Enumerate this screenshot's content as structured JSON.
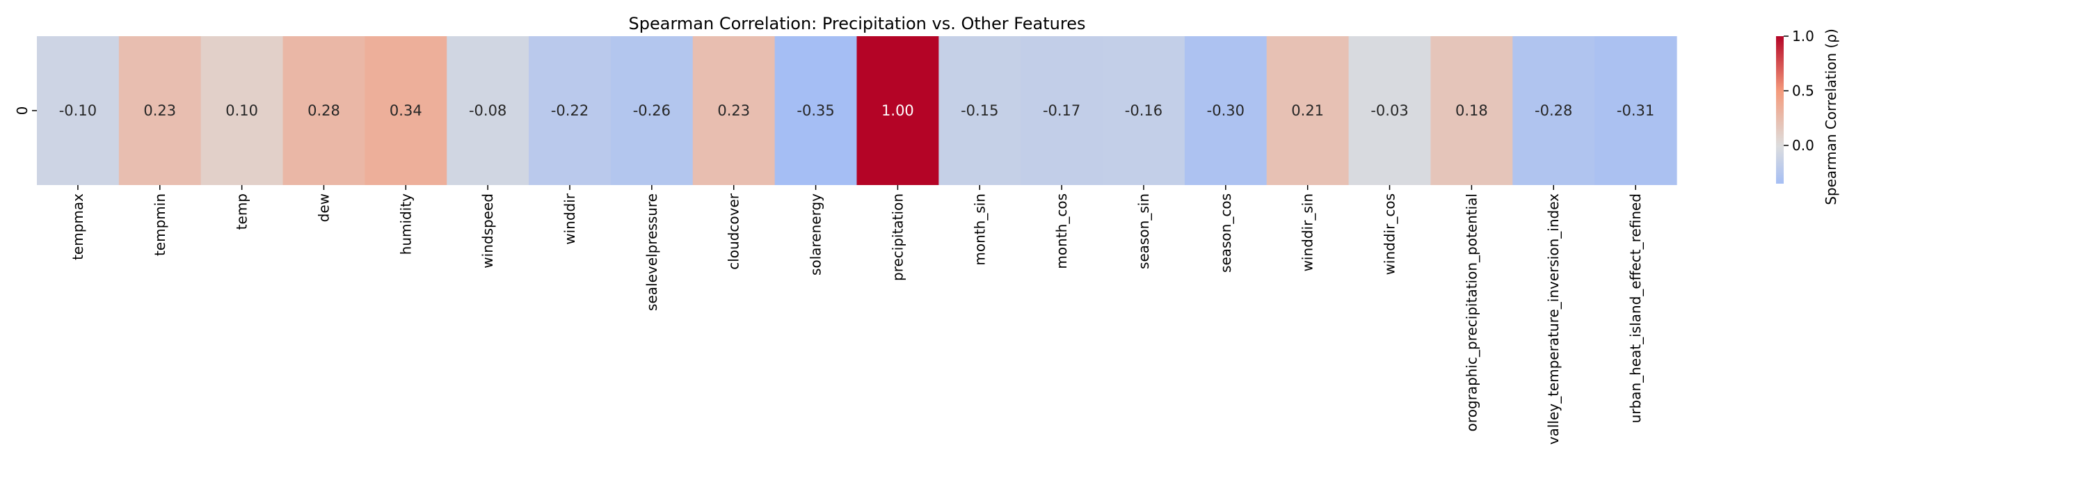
{
  "chart_data": {
    "type": "heatmap",
    "title": "Spearman Correlation: Precipitation vs. Other Features",
    "row_labels": [
      "0"
    ],
    "columns": [
      "tempmax",
      "tempmin",
      "temp",
      "dew",
      "humidity",
      "windspeed",
      "winddir",
      "sealevelpressure",
      "cloudcover",
      "solarenergy",
      "precipitation",
      "month_sin",
      "month_cos",
      "season_sin",
      "season_cos",
      "winddir_sin",
      "winddir_cos",
      "orographic_precipitation_potential",
      "valley_temperature_inversion_index",
      "urban_heat_island_effect_refined"
    ],
    "values": [
      [
        -0.1,
        0.23,
        0.1,
        0.28,
        0.34,
        -0.08,
        -0.22,
        -0.26,
        0.23,
        -0.35,
        1.0,
        -0.15,
        -0.17,
        -0.16,
        -0.3,
        0.21,
        -0.03,
        0.18,
        -0.28,
        -0.31
      ]
    ],
    "value_format": "2 decimals",
    "colormap": "coolwarm",
    "colorbar": {
      "label": "Spearman Correlation (ρ)",
      "range": [
        -0.35,
        1.0
      ],
      "ticks": [
        0.0,
        0.5,
        1.0
      ]
    },
    "colors": {
      "cold": "#3b4cc0",
      "neutral": "#dddddd",
      "hot": "#b40426"
    }
  }
}
